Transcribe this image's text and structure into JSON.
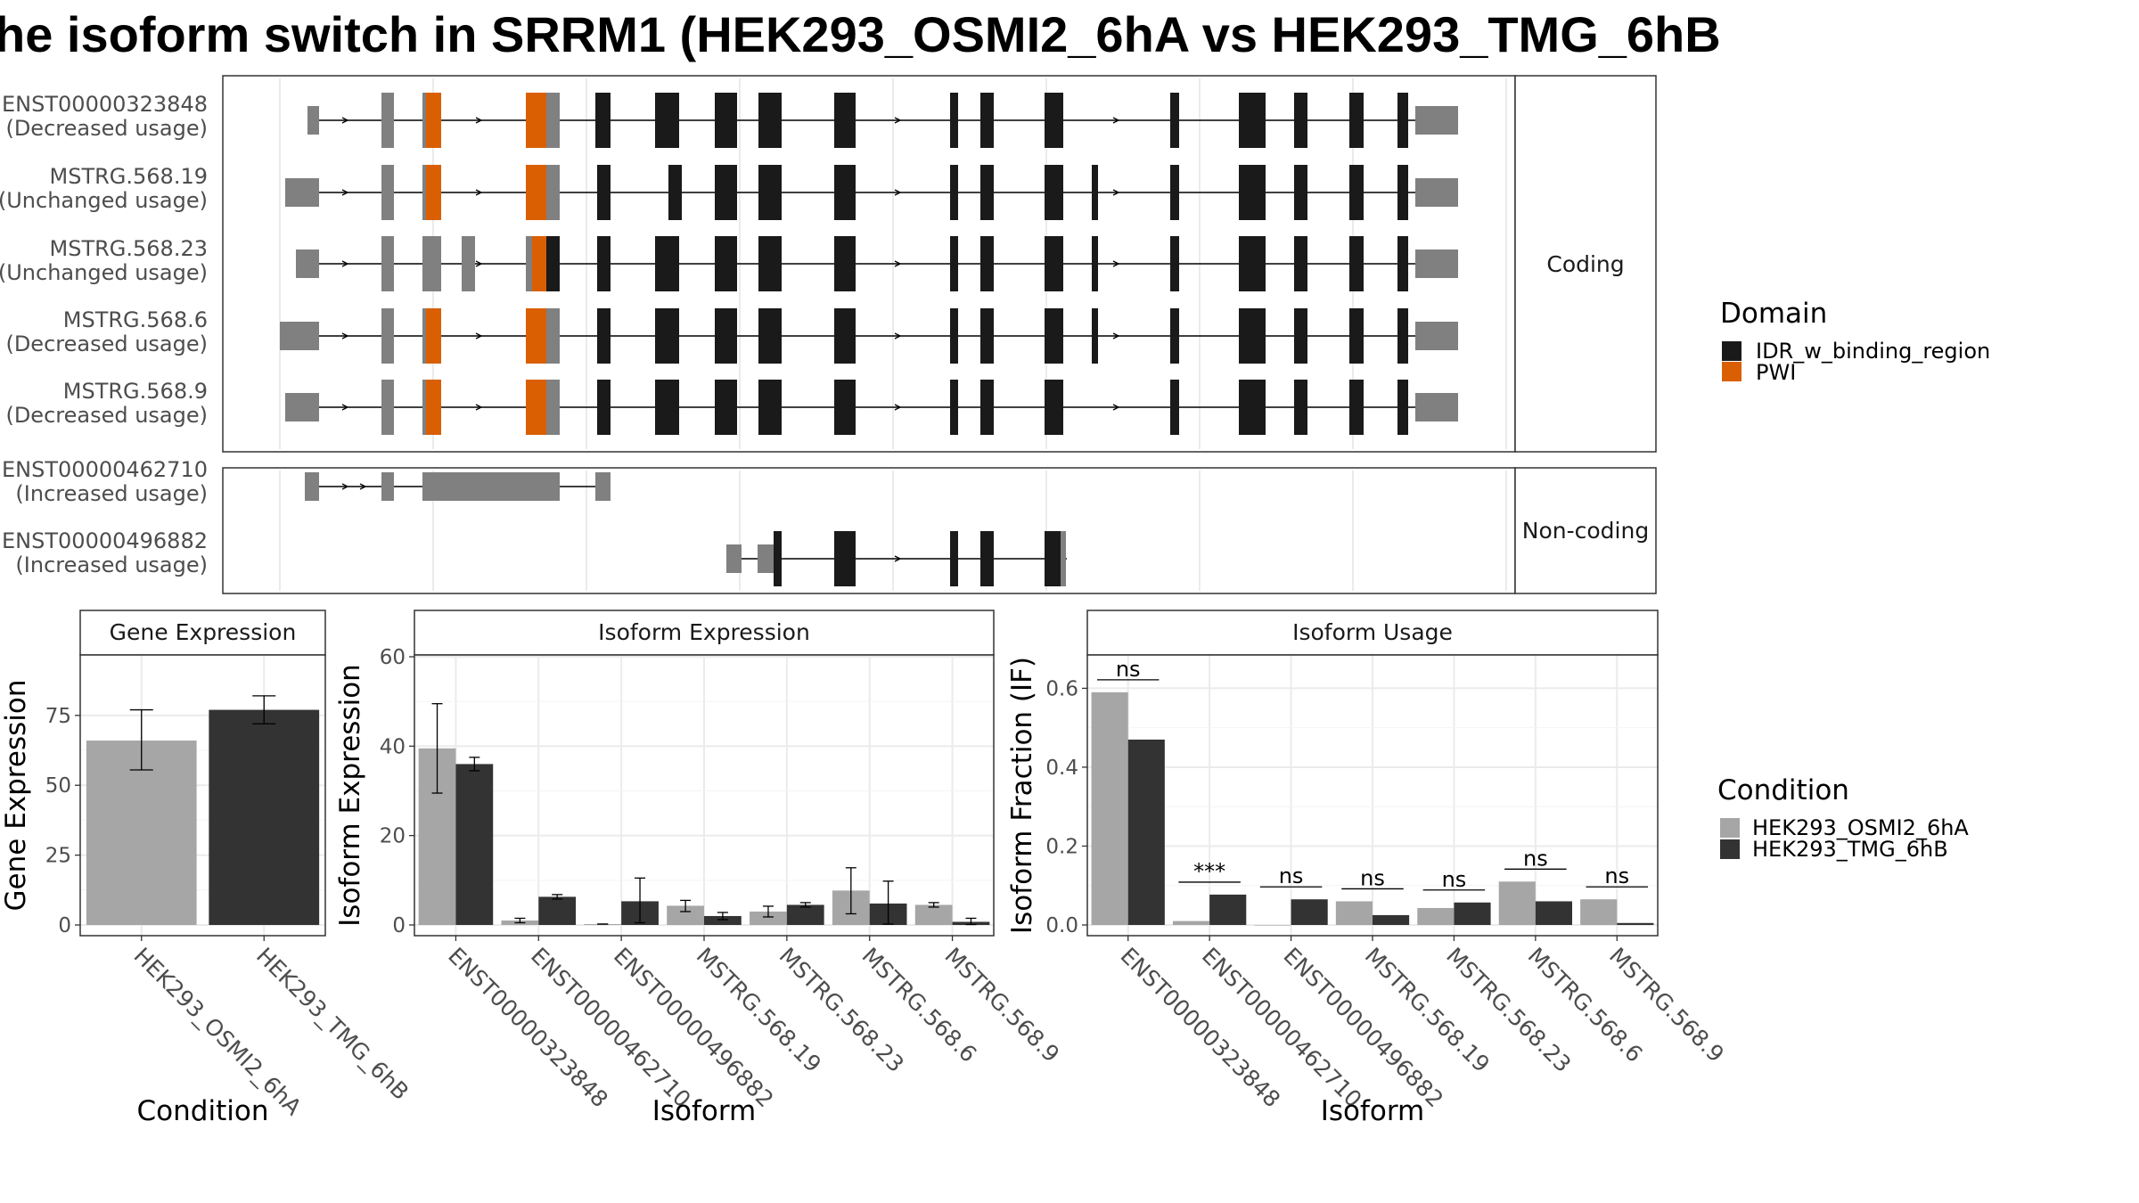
{
  "title": "he isoform switch in SRRM1 (HEK293_OSMI2_6hA vs HEK293_TMG_6hB",
  "colors": {
    "idr": "#1a1a1a",
    "pwi": "#d95f02",
    "utr": "#808080",
    "cond_a": "#a6a6a6",
    "cond_b": "#333333",
    "grid": "#ebebeb"
  },
  "domain_legend": {
    "title": "Domain",
    "items": [
      {
        "label": "IDR_w_binding_region",
        "color": "#1a1a1a"
      },
      {
        "label": "PWI",
        "color": "#d95f02"
      }
    ]
  },
  "condition_legend": {
    "title": "Condition",
    "items": [
      {
        "label": "HEK293_OSMI2_6hA",
        "color": "#a6a6a6"
      },
      {
        "label": "HEK293_TMG_6hB",
        "color": "#333333"
      }
    ]
  },
  "transcript_panels": [
    {
      "strip": "Coding",
      "transcripts": [
        {
          "id": "ENST00000323848",
          "usage": "(Decreased usage)"
        },
        {
          "id": "MSTRG.568.19",
          "usage": "(Unchanged usage)"
        },
        {
          "id": "MSTRG.568.23",
          "usage": "(Unchanged usage)"
        },
        {
          "id": "MSTRG.568.6",
          "usage": "(Decreased usage)"
        },
        {
          "id": "MSTRG.568.9",
          "usage": "(Decreased usage)"
        }
      ]
    },
    {
      "strip": "Non-coding",
      "transcripts": [
        {
          "id": "ENST00000462710",
          "usage": "(Increased usage)"
        },
        {
          "id": "ENST00000496882",
          "usage": "(Increased usage)"
        }
      ]
    }
  ],
  "chart_data": [
    {
      "type": "bar",
      "title": "Gene Expression",
      "xlabel": "Condition",
      "ylabel": "Gene Expression",
      "categories": [
        "HEK293_OSMI2_6hA",
        "HEK293_TMG_6hB"
      ],
      "values": [
        66,
        77
      ],
      "error_low": [
        55.5,
        72
      ],
      "error_high": [
        77,
        82
      ],
      "ylim": [
        0,
        96
      ],
      "yticks": [
        0,
        25,
        50,
        75
      ]
    },
    {
      "type": "bar",
      "title": "Isoform Expression",
      "xlabel": "Isoform",
      "ylabel": "Isoform Expression",
      "categories": [
        "ENST00000323848",
        "ENST00000462710",
        "ENST00000496882",
        "MSTRG.568.19",
        "MSTRG.568.23",
        "MSTRG.568.6",
        "MSTRG.568.9"
      ],
      "series": [
        {
          "name": "HEK293_OSMI2_6hA",
          "values": [
            39.5,
            1.0,
            0.2,
            4.3,
            3.0,
            7.7,
            4.5
          ],
          "error_low": [
            29.5,
            0.5,
            0.2,
            3.0,
            1.8,
            2.5,
            4.0
          ],
          "error_high": [
            49.5,
            1.5,
            0.2,
            5.5,
            4.2,
            12.8,
            5.0
          ]
        },
        {
          "name": "HEK293_TMG_6hB",
          "values": [
            36.0,
            6.3,
            5.3,
            2.0,
            4.5,
            4.8,
            0.7
          ],
          "error_low": [
            34.5,
            5.8,
            0.5,
            1.2,
            4.0,
            0.2,
            0.1
          ],
          "error_high": [
            37.5,
            6.8,
            10.5,
            2.8,
            5.0,
            9.8,
            1.5
          ]
        }
      ],
      "ylim": [
        0,
        60
      ],
      "yticks": [
        0,
        20,
        40,
        60
      ]
    },
    {
      "type": "bar",
      "title": "Isoform Usage",
      "xlabel": "Isoform",
      "ylabel": "Isoform Fraction (IF)",
      "categories": [
        "ENST00000323848",
        "ENST00000462710",
        "ENST00000496882",
        "MSTRG.568.19",
        "MSTRG.568.23",
        "MSTRG.568.6",
        "MSTRG.568.9"
      ],
      "series": [
        {
          "name": "HEK293_OSMI2_6hA",
          "values": [
            0.59,
            0.01,
            0.0,
            0.06,
            0.043,
            0.11,
            0.065
          ]
        },
        {
          "name": "HEK293_TMG_6hB",
          "values": [
            0.47,
            0.077,
            0.065,
            0.025,
            0.057,
            0.06,
            0.005
          ]
        }
      ],
      "significance": [
        "ns",
        "***",
        "ns",
        "ns",
        "ns",
        "ns",
        "ns"
      ],
      "ylim": [
        0,
        0.68
      ],
      "yticks": [
        0.0,
        0.2,
        0.4,
        0.6
      ]
    }
  ]
}
